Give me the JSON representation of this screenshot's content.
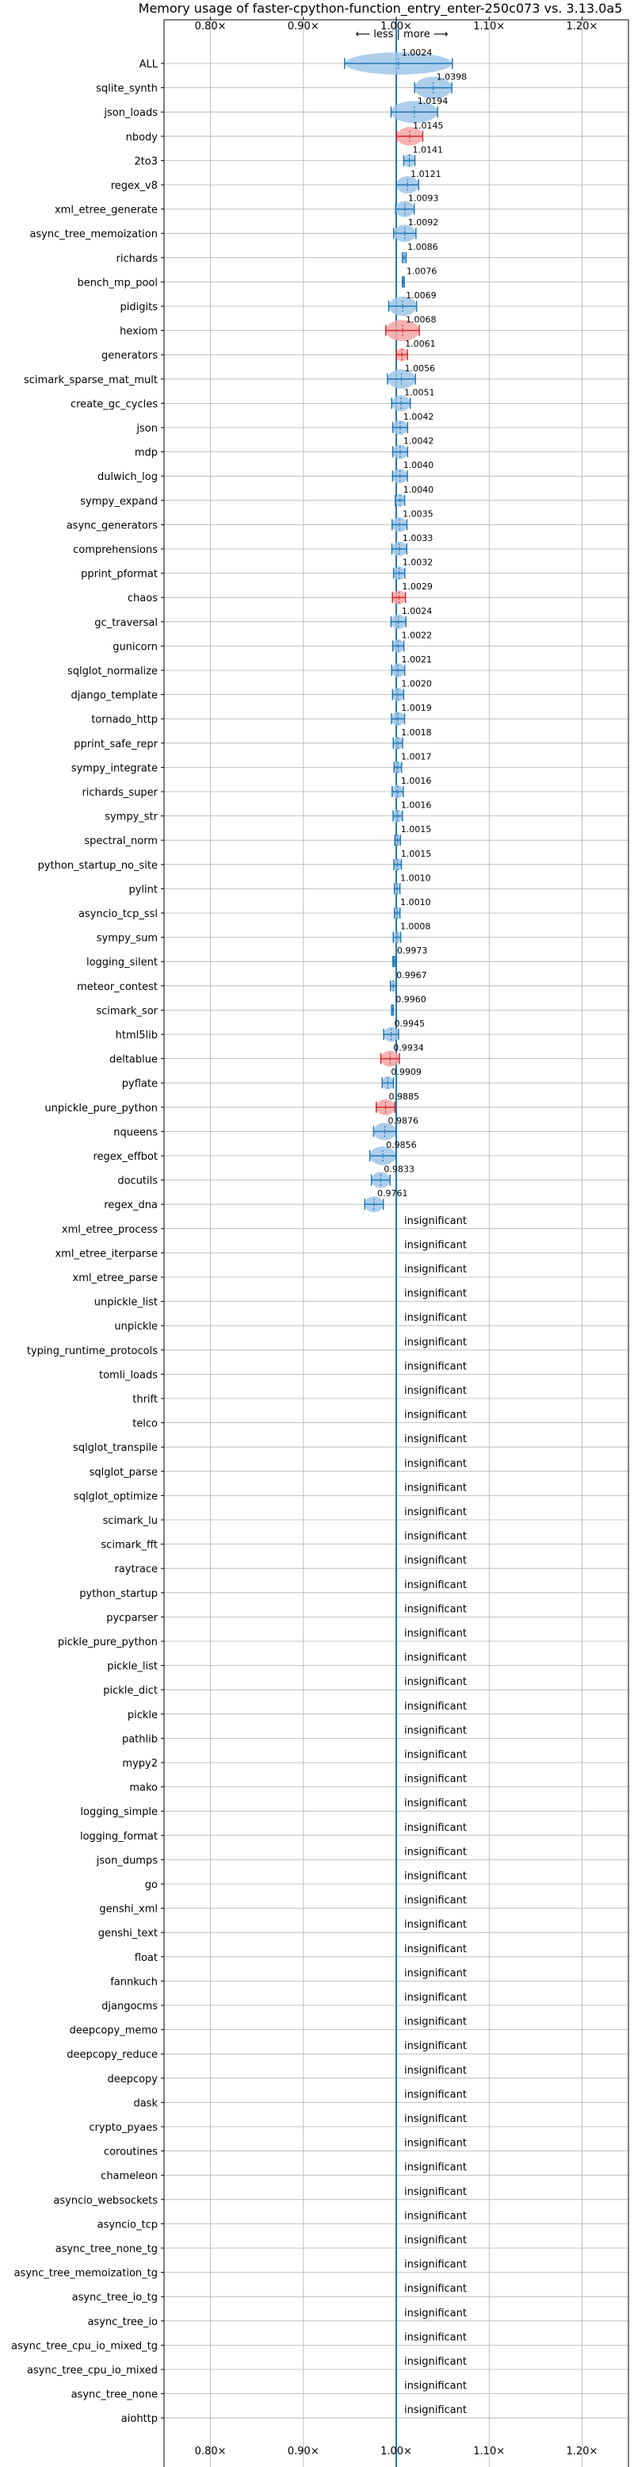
{
  "chart_data": {
    "type": "violin",
    "title": "Memory usage of faster-cpython-function_entry_enter-250c073 vs. 3.13.0a5",
    "direction_label": "⟵ less | more ⟶",
    "xlabel": "",
    "ylabel": "",
    "xlim": [
      0.75,
      1.25
    ],
    "xticks": [
      0.8,
      0.9,
      1.0,
      1.1,
      1.2
    ],
    "xtick_labels": [
      "0.80×",
      "0.90×",
      "1.00×",
      "1.10×",
      "1.20×"
    ],
    "grid": true,
    "insignificant_label": "insignificant",
    "benchmarks": [
      {
        "name": "ALL",
        "value": 1.0024,
        "err": 0.058,
        "color": "blue"
      },
      {
        "name": "sqlite_synth",
        "value": 1.0398,
        "err": 0.02,
        "color": "blue"
      },
      {
        "name": "json_loads",
        "value": 1.0194,
        "err": 0.025,
        "color": "blue"
      },
      {
        "name": "nbody",
        "value": 1.0145,
        "err": 0.014,
        "color": "red"
      },
      {
        "name": "2to3",
        "value": 1.0141,
        "err": 0.006,
        "color": "blue"
      },
      {
        "name": "regex_v8",
        "value": 1.0121,
        "err": 0.012,
        "color": "blue"
      },
      {
        "name": "xml_etree_generate",
        "value": 1.0093,
        "err": 0.01,
        "color": "blue"
      },
      {
        "name": "async_tree_memoization",
        "value": 1.0092,
        "err": 0.012,
        "color": "blue"
      },
      {
        "name": "richards",
        "value": 1.0086,
        "err": 0.002,
        "color": "blue"
      },
      {
        "name": "bench_mp_pool",
        "value": 1.0076,
        "err": 0.001,
        "color": "blue"
      },
      {
        "name": "pidigits",
        "value": 1.0069,
        "err": 0.015,
        "color": "blue"
      },
      {
        "name": "hexiom",
        "value": 1.0068,
        "err": 0.018,
        "color": "red"
      },
      {
        "name": "generators",
        "value": 1.0061,
        "err": 0.006,
        "color": "red"
      },
      {
        "name": "scimark_sparse_mat_mult",
        "value": 1.0056,
        "err": 0.015,
        "color": "blue"
      },
      {
        "name": "create_gc_cycles",
        "value": 1.0051,
        "err": 0.01,
        "color": "blue"
      },
      {
        "name": "json",
        "value": 1.0042,
        "err": 0.008,
        "color": "blue"
      },
      {
        "name": "mdp",
        "value": 1.0042,
        "err": 0.008,
        "color": "blue"
      },
      {
        "name": "dulwich_log",
        "value": 1.004,
        "err": 0.008,
        "color": "blue"
      },
      {
        "name": "sympy_expand",
        "value": 1.004,
        "err": 0.005,
        "color": "blue"
      },
      {
        "name": "async_generators",
        "value": 1.0035,
        "err": 0.008,
        "color": "blue"
      },
      {
        "name": "comprehensions",
        "value": 1.0033,
        "err": 0.008,
        "color": "blue"
      },
      {
        "name": "pprint_pformat",
        "value": 1.0032,
        "err": 0.006,
        "color": "blue"
      },
      {
        "name": "chaos",
        "value": 1.0029,
        "err": 0.007,
        "color": "red"
      },
      {
        "name": "gc_traversal",
        "value": 1.0024,
        "err": 0.008,
        "color": "blue"
      },
      {
        "name": "gunicorn",
        "value": 1.0022,
        "err": 0.006,
        "color": "blue"
      },
      {
        "name": "sqlglot_normalize",
        "value": 1.0021,
        "err": 0.007,
        "color": "blue"
      },
      {
        "name": "django_template",
        "value": 1.002,
        "err": 0.006,
        "color": "blue"
      },
      {
        "name": "tornado_http",
        "value": 1.0019,
        "err": 0.007,
        "color": "blue"
      },
      {
        "name": "pprint_safe_repr",
        "value": 1.0018,
        "err": 0.005,
        "color": "blue"
      },
      {
        "name": "sympy_integrate",
        "value": 1.0017,
        "err": 0.004,
        "color": "blue"
      },
      {
        "name": "richards_super",
        "value": 1.0016,
        "err": 0.006,
        "color": "blue"
      },
      {
        "name": "sympy_str",
        "value": 1.0016,
        "err": 0.005,
        "color": "blue"
      },
      {
        "name": "spectral_norm",
        "value": 1.0015,
        "err": 0.003,
        "color": "blue"
      },
      {
        "name": "python_startup_no_site",
        "value": 1.0015,
        "err": 0.004,
        "color": "blue"
      },
      {
        "name": "pylint",
        "value": 1.001,
        "err": 0.003,
        "color": "blue"
      },
      {
        "name": "asyncio_tcp_ssl",
        "value": 1.001,
        "err": 0.003,
        "color": "blue"
      },
      {
        "name": "sympy_sum",
        "value": 1.0008,
        "err": 0.004,
        "color": "blue"
      },
      {
        "name": "logging_silent",
        "value": 0.9973,
        "err": 0.001,
        "color": "blue"
      },
      {
        "name": "meteor_contest",
        "value": 0.9967,
        "err": 0.003,
        "color": "blue"
      },
      {
        "name": "scimark_sor",
        "value": 0.996,
        "err": 0.001,
        "color": "blue"
      },
      {
        "name": "html5lib",
        "value": 0.9945,
        "err": 0.008,
        "color": "blue"
      },
      {
        "name": "deltablue",
        "value": 0.9934,
        "err": 0.01,
        "color": "red"
      },
      {
        "name": "pyflate",
        "value": 0.9909,
        "err": 0.006,
        "color": "blue"
      },
      {
        "name": "unpickle_pure_python",
        "value": 0.9885,
        "err": 0.01,
        "color": "red"
      },
      {
        "name": "nqueens",
        "value": 0.9876,
        "err": 0.012,
        "color": "blue"
      },
      {
        "name": "regex_effbot",
        "value": 0.9856,
        "err": 0.014,
        "color": "blue"
      },
      {
        "name": "docutils",
        "value": 0.9833,
        "err": 0.01,
        "color": "blue"
      },
      {
        "name": "regex_dna",
        "value": 0.9761,
        "err": 0.01,
        "color": "blue"
      },
      {
        "name": "xml_etree_process",
        "insignificant": true
      },
      {
        "name": "xml_etree_iterparse",
        "insignificant": true
      },
      {
        "name": "xml_etree_parse",
        "insignificant": true
      },
      {
        "name": "unpickle_list",
        "insignificant": true
      },
      {
        "name": "unpickle",
        "insignificant": true
      },
      {
        "name": "typing_runtime_protocols",
        "insignificant": true
      },
      {
        "name": "tomli_loads",
        "insignificant": true
      },
      {
        "name": "thrift",
        "insignificant": true
      },
      {
        "name": "telco",
        "insignificant": true
      },
      {
        "name": "sqlglot_transpile",
        "insignificant": true
      },
      {
        "name": "sqlglot_parse",
        "insignificant": true
      },
      {
        "name": "sqlglot_optimize",
        "insignificant": true
      },
      {
        "name": "scimark_lu",
        "insignificant": true
      },
      {
        "name": "scimark_fft",
        "insignificant": true
      },
      {
        "name": "raytrace",
        "insignificant": true
      },
      {
        "name": "python_startup",
        "insignificant": true
      },
      {
        "name": "pycparser",
        "insignificant": true
      },
      {
        "name": "pickle_pure_python",
        "insignificant": true
      },
      {
        "name": "pickle_list",
        "insignificant": true
      },
      {
        "name": "pickle_dict",
        "insignificant": true
      },
      {
        "name": "pickle",
        "insignificant": true
      },
      {
        "name": "pathlib",
        "insignificant": true
      },
      {
        "name": "mypy2",
        "insignificant": true
      },
      {
        "name": "mako",
        "insignificant": true
      },
      {
        "name": "logging_simple",
        "insignificant": true
      },
      {
        "name": "logging_format",
        "insignificant": true
      },
      {
        "name": "json_dumps",
        "insignificant": true
      },
      {
        "name": "go",
        "insignificant": true
      },
      {
        "name": "genshi_xml",
        "insignificant": true
      },
      {
        "name": "genshi_text",
        "insignificant": true
      },
      {
        "name": "float",
        "insignificant": true
      },
      {
        "name": "fannkuch",
        "insignificant": true
      },
      {
        "name": "djangocms",
        "insignificant": true
      },
      {
        "name": "deepcopy_memo",
        "insignificant": true
      },
      {
        "name": "deepcopy_reduce",
        "insignificant": true
      },
      {
        "name": "deepcopy",
        "insignificant": true
      },
      {
        "name": "dask",
        "insignificant": true
      },
      {
        "name": "crypto_pyaes",
        "insignificant": true
      },
      {
        "name": "coroutines",
        "insignificant": true
      },
      {
        "name": "chameleon",
        "insignificant": true
      },
      {
        "name": "asyncio_websockets",
        "insignificant": true
      },
      {
        "name": "asyncio_tcp",
        "insignificant": true
      },
      {
        "name": "async_tree_none_tg",
        "insignificant": true
      },
      {
        "name": "async_tree_memoization_tg",
        "insignificant": true
      },
      {
        "name": "async_tree_io_tg",
        "insignificant": true
      },
      {
        "name": "async_tree_io",
        "insignificant": true
      },
      {
        "name": "async_tree_cpu_io_mixed_tg",
        "insignificant": true
      },
      {
        "name": "async_tree_cpu_io_mixed",
        "insignificant": true
      },
      {
        "name": "async_tree_none",
        "insignificant": true
      },
      {
        "name": "aiohttp",
        "insignificant": true
      }
    ]
  },
  "colors": {
    "significant_fill": "#9fc5e8",
    "significant_line": "#1f77b4",
    "red_fill": "#f4a6a6",
    "red_line": "#d62728",
    "grid": "#b0b0b0",
    "axis": "#000000"
  }
}
